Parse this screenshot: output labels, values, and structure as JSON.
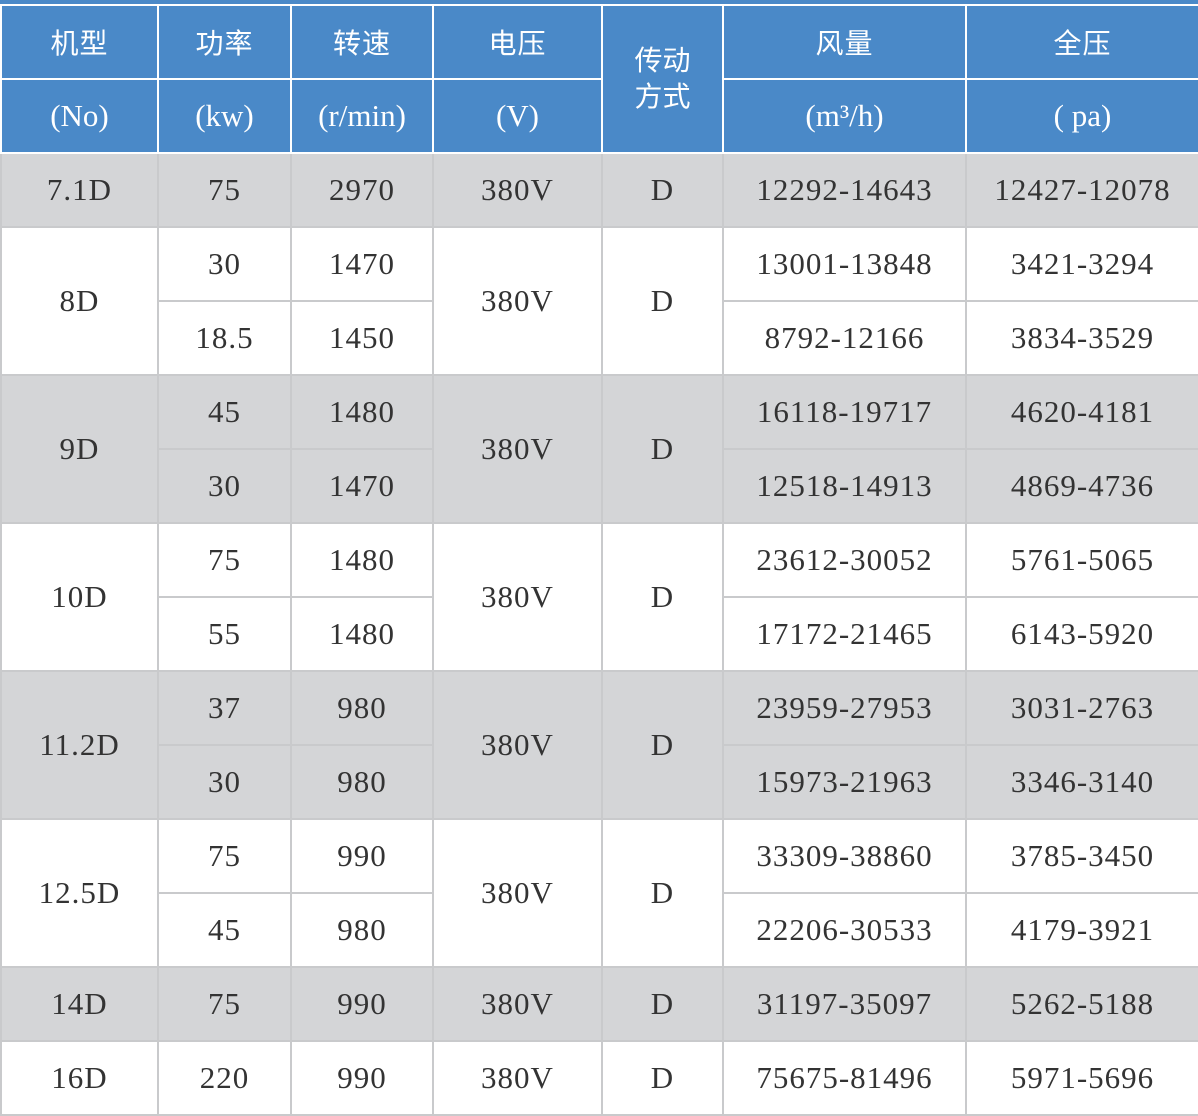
{
  "header": {
    "model": "机型",
    "model_unit": "(No)",
    "power": "功率",
    "power_unit": "(kw)",
    "speed": "转速",
    "speed_unit": "(r/min)",
    "voltage": "电压",
    "voltage_unit": "(V)",
    "drive_line1": "传动",
    "drive_line2": "方式",
    "airflow": "风量",
    "airflow_unit": "(m³/h)",
    "pressure": "全压",
    "pressure_unit": "( pa)"
  },
  "colors": {
    "header_bg": "#4a89c8",
    "shaded_row": "#d4d5d7",
    "border": "#c9cacc",
    "text": "#333333"
  },
  "groups": [
    {
      "model": "7.1D",
      "voltage": "380V",
      "drive": "D",
      "shaded": true,
      "rows": [
        {
          "power": "75",
          "speed": "2970",
          "airflow": "12292-14643",
          "pressure": "12427-12078"
        }
      ]
    },
    {
      "model": "8D",
      "voltage": "380V",
      "drive": "D",
      "shaded": false,
      "rows": [
        {
          "power": "30",
          "speed": "1470",
          "airflow": "13001-13848",
          "pressure": "3421-3294"
        },
        {
          "power": "18.5",
          "speed": "1450",
          "airflow": "8792-12166",
          "pressure": "3834-3529"
        }
      ]
    },
    {
      "model": "9D",
      "voltage": "380V",
      "drive": "D",
      "shaded": true,
      "rows": [
        {
          "power": "45",
          "speed": "1480",
          "airflow": "16118-19717",
          "pressure": "4620-4181"
        },
        {
          "power": "30",
          "speed": "1470",
          "airflow": "12518-14913",
          "pressure": "4869-4736"
        }
      ]
    },
    {
      "model": "10D",
      "voltage": "380V",
      "drive": "D",
      "shaded": false,
      "rows": [
        {
          "power": "75",
          "speed": "1480",
          "airflow": "23612-30052",
          "pressure": "5761-5065"
        },
        {
          "power": "55",
          "speed": "1480",
          "airflow": "17172-21465",
          "pressure": "6143-5920"
        }
      ]
    },
    {
      "model": "11.2D",
      "voltage": "380V",
      "drive": "D",
      "shaded": true,
      "rows": [
        {
          "power": "37",
          "speed": "980",
          "airflow": "23959-27953",
          "pressure": "3031-2763"
        },
        {
          "power": "30",
          "speed": "980",
          "airflow": "15973-21963",
          "pressure": "3346-3140"
        }
      ]
    },
    {
      "model": "12.5D",
      "voltage": "380V",
      "drive": "D",
      "shaded": false,
      "rows": [
        {
          "power": "75",
          "speed": "990",
          "airflow": "33309-38860",
          "pressure": "3785-3450"
        },
        {
          "power": "45",
          "speed": "980",
          "airflow": "22206-30533",
          "pressure": "4179-3921"
        }
      ]
    },
    {
      "model": "14D",
      "voltage": "380V",
      "drive": "D",
      "shaded": true,
      "rows": [
        {
          "power": "75",
          "speed": "990",
          "airflow": "31197-35097",
          "pressure": "5262-5188"
        }
      ]
    },
    {
      "model": "16D",
      "voltage": "380V",
      "drive": "D",
      "shaded": false,
      "rows": [
        {
          "power": "220",
          "speed": "990",
          "airflow": "75675-81496",
          "pressure": "5971-5696"
        }
      ]
    }
  ]
}
